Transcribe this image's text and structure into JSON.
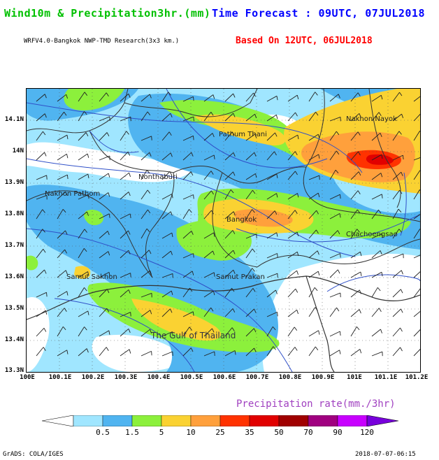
{
  "header": {
    "title_left": "Wind10m & Precipitation3hr.(mm)",
    "title_right": "Time Forecast : 09UTC, 07JUL2018",
    "model_line": "WRFV4.0-Bangkok NWP-TMD Research(3x3 km.)",
    "based_on": "Based On 12UTC, 06JUL2018",
    "colors": {
      "title_left": "#00c000",
      "title_right": "#0000ff",
      "based_on": "#ff0000"
    }
  },
  "map": {
    "lat_labels": [
      "14.1N",
      "14N",
      "13.9N",
      "13.8N",
      "13.7N",
      "13.6N",
      "13.5N",
      "13.4N",
      "13.3N"
    ],
    "lon_labels": [
      "100E",
      "100.1E",
      "100.2E",
      "100.3E",
      "100.4E",
      "100.5E",
      "100.6E",
      "100.7E",
      "100.8E",
      "100.9E",
      "101E",
      "101.1E",
      "101.2E"
    ],
    "place_labels": [
      {
        "text": "Nakhon Nayok"
      },
      {
        "text": "Pathum Thani"
      },
      {
        "text": "Nonthaburi"
      },
      {
        "text": "Nakhon Pathom"
      },
      {
        "text": "Bangkok"
      },
      {
        "text": "Chachoengsao"
      },
      {
        "text": "Samut Sakhon"
      },
      {
        "text": "Samut Prakan"
      },
      {
        "text": "The Gulf of Thailand"
      }
    ]
  },
  "legend": {
    "title": "Precipitation rate(mm./3hr)",
    "labels": [
      "0.5",
      "1.5",
      "5",
      "10",
      "25",
      "35",
      "50",
      "70",
      "90",
      "120"
    ],
    "colors": [
      "#ffffff",
      "#a0e6ff",
      "#50b4f0",
      "#8cf03c",
      "#fad232",
      "#ffa03c",
      "#ff3200",
      "#e10000",
      "#a00000",
      "#a00080",
      "#c800ff",
      "#7800dc"
    ]
  },
  "footer": {
    "left": "GrADS: COLA/IGES",
    "right": "2018-07-07-06:15"
  }
}
